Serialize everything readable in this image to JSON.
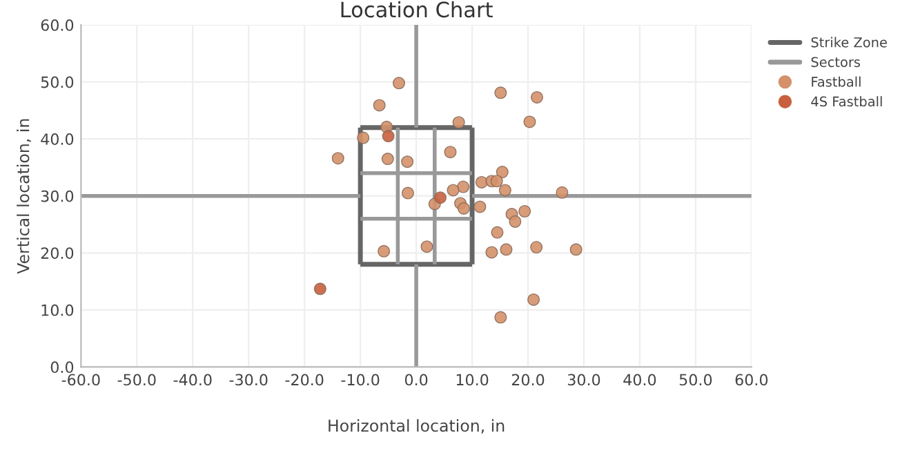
{
  "chart_data": {
    "type": "scatter",
    "title": "Location Chart",
    "xlabel": "Horizontal location, in",
    "ylabel": "Vertical location, in",
    "xlim": [
      -60,
      60
    ],
    "ylim": [
      0,
      60
    ],
    "xticks": [
      {
        "value": -60,
        "label": "-60.0"
      },
      {
        "value": -50,
        "label": "-50.0"
      },
      {
        "value": -40,
        "label": "-40.0"
      },
      {
        "value": -30,
        "label": "-30.0"
      },
      {
        "value": -20,
        "label": "-20.0"
      },
      {
        "value": -10,
        "label": "-10.0"
      },
      {
        "value": 0,
        "label": "0.0"
      },
      {
        "value": 10,
        "label": "10.0"
      },
      {
        "value": 20,
        "label": "20.0"
      },
      {
        "value": 30,
        "label": "30.0"
      },
      {
        "value": 40,
        "label": "40.0"
      },
      {
        "value": 50,
        "label": "50.0"
      },
      {
        "value": 60,
        "label": "60.0"
      }
    ],
    "yticks": [
      {
        "value": 0,
        "label": "0.0"
      },
      {
        "value": 10,
        "label": "10.0"
      },
      {
        "value": 20,
        "label": "20.0"
      },
      {
        "value": 30,
        "label": "30.0"
      },
      {
        "value": 40,
        "label": "40.0"
      },
      {
        "value": 50,
        "label": "50.0"
      },
      {
        "value": 60,
        "label": "60.0"
      }
    ],
    "grid": true,
    "legend": "top right",
    "series": [
      {
        "name": "Strike Zone",
        "type": "line",
        "marker": "none",
        "color": "#666666",
        "x": [
          -10,
          10
        ],
        "values": [
          18,
          18
        ]
      },
      {
        "type": "line",
        "marker": "none",
        "color": "#666666",
        "x": [
          -10,
          10
        ],
        "values": [
          42,
          42
        ]
      },
      {
        "type": "line",
        "marker": "none",
        "color": "#666666",
        "x": [
          -10,
          -10
        ],
        "values": [
          18,
          42
        ]
      },
      {
        "type": "line",
        "marker": "none",
        "color": "#666666",
        "x": [
          10,
          10
        ],
        "values": [
          18,
          42
        ]
      },
      {
        "name": "Sectors",
        "type": "line",
        "marker": "none",
        "color": "#999999",
        "x": [
          -10,
          10
        ],
        "values": [
          26,
          26
        ]
      },
      {
        "type": "line",
        "marker": "none",
        "color": "#999999",
        "x": [
          -10,
          10
        ],
        "values": [
          34,
          34
        ]
      },
      {
        "type": "line",
        "marker": "none",
        "color": "#999999",
        "x": [
          -3.3,
          -3.3
        ],
        "values": [
          18,
          42
        ]
      },
      {
        "type": "line",
        "marker": "none",
        "color": "#999999",
        "x": [
          3.3,
          3.3
        ],
        "values": [
          18,
          42
        ]
      },
      {
        "type": "line",
        "marker": "none",
        "color": "#999999",
        "x": [
          -60,
          -10
        ],
        "values": [
          30,
          30
        ]
      },
      {
        "type": "line",
        "marker": "none",
        "color": "#999999",
        "x": [
          10,
          60
        ],
        "values": [
          30,
          30
        ]
      },
      {
        "type": "line",
        "marker": "none",
        "color": "#999999",
        "x": [
          0,
          0
        ],
        "values": [
          42,
          60
        ]
      },
      {
        "type": "line",
        "marker": "none",
        "color": "#999999",
        "x": [
          0,
          0
        ],
        "values": [
          0,
          18
        ]
      },
      {
        "name": "Fastball",
        "marker": "circle",
        "color": "#d4916a",
        "x": [
          -3.1,
          -6.6,
          15.1,
          21.6,
          -5.3,
          -9.5,
          7.6,
          20.3,
          -14.0,
          -5.1,
          -1.6,
          6.1,
          15.4,
          11.7,
          13.5,
          14.4,
          8.4,
          6.6,
          15.9,
          26.1,
          -1.5,
          3.3,
          7.9,
          8.5,
          11.4,
          17.1,
          19.4,
          17.7,
          14.5,
          -5.8,
          1.9,
          13.5,
          16.1,
          21.5,
          28.6,
          21.0,
          15.1
        ],
        "values": [
          49.8,
          45.9,
          48.1,
          47.3,
          42.1,
          40.2,
          42.9,
          43.0,
          36.6,
          36.5,
          36.0,
          37.7,
          34.2,
          32.4,
          32.6,
          32.6,
          31.6,
          31.0,
          31.0,
          30.6,
          30.5,
          28.6,
          28.7,
          27.8,
          28.1,
          26.8,
          27.3,
          25.5,
          23.6,
          20.3,
          21.1,
          20.1,
          20.6,
          21.0,
          20.6,
          11.8,
          8.7
        ]
      },
      {
        "name": "4S Fastball",
        "marker": "circle",
        "color": "#c8603e",
        "x": [
          -5.0,
          4.3,
          -17.2
        ],
        "values": [
          40.5,
          29.7,
          13.7
        ]
      }
    ]
  }
}
